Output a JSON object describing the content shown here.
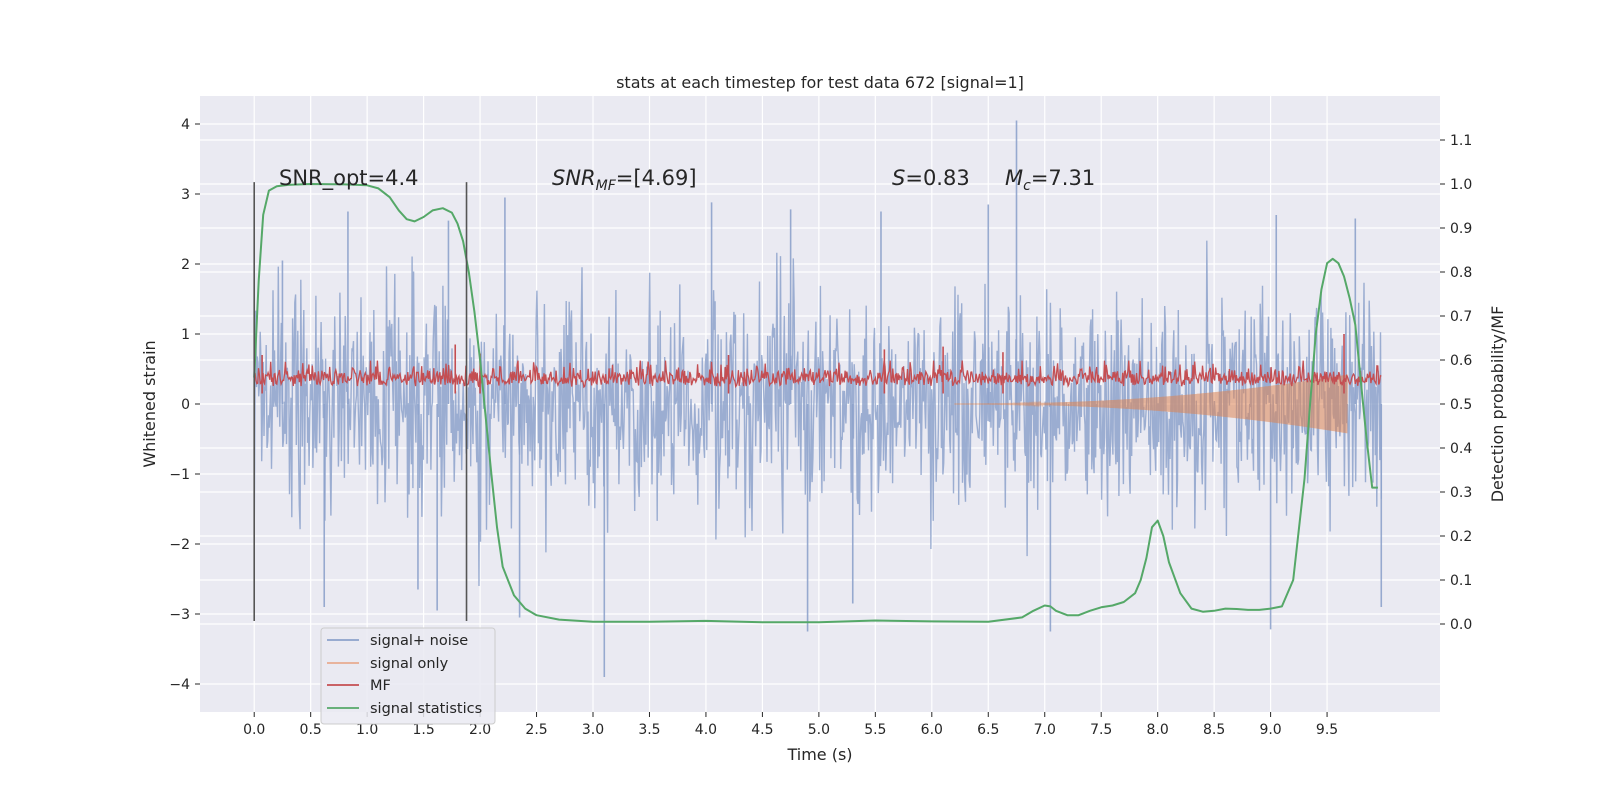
{
  "chart_data": {
    "type": "line",
    "title": "stats at each timestep for test data 672 [signal=1]",
    "xlabel": "Time (s)",
    "ylabel_left": "Whitened strain",
    "ylabel_right": "Detection probability/MF",
    "xlim": [
      -0.48,
      10.5
    ],
    "ylim_left": [
      -4.4,
      4.4
    ],
    "ylim_right": [
      -0.2,
      1.2
    ],
    "x_ticks": [
      "0.0",
      "0.5",
      "1.0",
      "1.5",
      "2.0",
      "2.5",
      "3.0",
      "3.5",
      "4.0",
      "4.5",
      "5.0",
      "5.5",
      "6.0",
      "6.5",
      "7.0",
      "7.5",
      "8.0",
      "8.5",
      "9.0",
      "9.5"
    ],
    "y_left_ticks": [
      "−4",
      "−3",
      "−2",
      "−1",
      "0",
      "1",
      "2",
      "3",
      "4"
    ],
    "y_right_ticks": [
      "0.0",
      "0.1",
      "0.2",
      "0.3",
      "0.4",
      "0.5",
      "0.6",
      "0.7",
      "0.8",
      "0.9",
      "1.0",
      "1.1"
    ],
    "grid": true,
    "legend_position": "lower-left",
    "annotations": {
      "snr_opt": "SNR_opt=4.4",
      "snr_mf_sym": "SNR",
      "snr_mf_sub": "MF",
      "snr_mf_val": "=[4.69]",
      "s_sym": "S",
      "s_val": "=0.83",
      "mc_sym": "M",
      "mc_sub": "c",
      "mc_val": "=7.31"
    },
    "vertical_markers": {
      "x": [
        0.0,
        1.88
      ],
      "y_range": [
        -3.1,
        3.17
      ]
    },
    "series": [
      {
        "name": "signal+ noise",
        "axis": "left",
        "color": "#8da2cb",
        "style": "noise",
        "x_range": [
          0.0,
          9.98
        ],
        "spread": 0.75,
        "peaks": [
          {
            "x": 0.25,
            "y": 2.05
          },
          {
            "x": 0.83,
            "y": 2.75
          },
          {
            "x": 1.72,
            "y": 2.62
          },
          {
            "x": 2.22,
            "y": 2.95
          },
          {
            "x": 4.05,
            "y": 2.88
          },
          {
            "x": 4.75,
            "y": 2.78
          },
          {
            "x": 5.55,
            "y": 2.75
          },
          {
            "x": 6.5,
            "y": 2.85
          },
          {
            "x": 6.75,
            "y": 4.05
          },
          {
            "x": 9.05,
            "y": 2.7
          },
          {
            "x": 9.75,
            "y": 2.65
          },
          {
            "x": 0.62,
            "y": -2.9
          },
          {
            "x": 1.45,
            "y": -2.65
          },
          {
            "x": 1.62,
            "y": -2.95
          },
          {
            "x": 2.35,
            "y": -3.05
          },
          {
            "x": 3.1,
            "y": -3.9
          },
          {
            "x": 4.9,
            "y": -3.25
          },
          {
            "x": 5.3,
            "y": -2.85
          },
          {
            "x": 7.05,
            "y": -3.25
          },
          {
            "x": 9.0,
            "y": -3.22
          },
          {
            "x": 9.98,
            "y": -2.9
          }
        ]
      },
      {
        "name": "signal only",
        "axis": "left",
        "color": "#dd8452",
        "style": "chirp",
        "x_range": [
          6.2,
          9.68
        ],
        "amplitude_end": 0.42
      },
      {
        "name": "MF",
        "axis": "left",
        "color": "#c44e52",
        "style": "mf",
        "x_range": [
          0.0,
          9.98
        ],
        "baseline": 0.05,
        "mean": 0.28,
        "peaks": [
          {
            "x": 0.07,
            "y": 0.7
          },
          {
            "x": 1.78,
            "y": 0.85
          },
          {
            "x": 2.0,
            "y": 0.72
          },
          {
            "x": 4.2,
            "y": 0.7
          },
          {
            "x": 5.58,
            "y": 0.78
          },
          {
            "x": 6.1,
            "y": 0.82
          },
          {
            "x": 6.63,
            "y": 0.74
          },
          {
            "x": 9.65,
            "y": 1.0
          }
        ]
      },
      {
        "name": "signal statistics",
        "axis": "right",
        "color": "#55a868",
        "style": "line",
        "x": [
          0.0,
          0.04,
          0.08,
          0.13,
          0.2,
          0.3,
          0.5,
          0.8,
          1.0,
          1.1,
          1.2,
          1.28,
          1.35,
          1.42,
          1.5,
          1.58,
          1.67,
          1.75,
          1.8,
          1.85,
          1.9,
          1.95,
          2.0,
          2.05,
          2.1,
          2.15,
          2.2,
          2.3,
          2.4,
          2.5,
          2.7,
          3.0,
          3.5,
          4.0,
          4.5,
          5.0,
          5.5,
          6.0,
          6.5,
          6.8,
          6.9,
          7.0,
          7.05,
          7.1,
          7.2,
          7.3,
          7.4,
          7.5,
          7.6,
          7.7,
          7.8,
          7.85,
          7.9,
          7.95,
          8.0,
          8.05,
          8.1,
          8.2,
          8.3,
          8.4,
          8.5,
          8.6,
          8.7,
          8.8,
          8.9,
          9.0,
          9.1,
          9.2,
          9.3,
          9.35,
          9.4,
          9.45,
          9.5,
          9.55,
          9.6,
          9.65,
          9.7,
          9.75,
          9.8,
          9.85,
          9.9,
          9.95
        ],
        "values": [
          0.56,
          0.78,
          0.93,
          0.985,
          0.995,
          0.998,
          1.0,
          0.999,
          0.997,
          0.99,
          0.97,
          0.94,
          0.92,
          0.915,
          0.925,
          0.94,
          0.945,
          0.935,
          0.91,
          0.87,
          0.8,
          0.71,
          0.6,
          0.47,
          0.34,
          0.22,
          0.13,
          0.065,
          0.035,
          0.02,
          0.01,
          0.005,
          0.005,
          0.007,
          0.004,
          0.004,
          0.008,
          0.006,
          0.005,
          0.015,
          0.03,
          0.042,
          0.04,
          0.03,
          0.02,
          0.02,
          0.03,
          0.038,
          0.042,
          0.05,
          0.07,
          0.1,
          0.15,
          0.22,
          0.235,
          0.2,
          0.14,
          0.07,
          0.035,
          0.028,
          0.03,
          0.035,
          0.034,
          0.032,
          0.032,
          0.035,
          0.04,
          0.1,
          0.33,
          0.5,
          0.66,
          0.76,
          0.82,
          0.83,
          0.82,
          0.79,
          0.74,
          0.68,
          0.55,
          0.42,
          0.31,
          0.31
        ]
      }
    ]
  }
}
